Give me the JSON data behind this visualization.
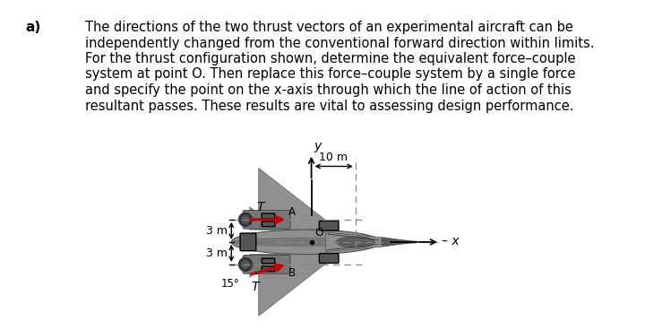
{
  "background_color": "#ffffff",
  "label_a": "a)",
  "line1": "The directions of the two thrust vectors of an experimental aircraft can be",
  "line2": "independently changed from the conventional forward direction within limits.",
  "line3": "For the thrust configuration shown, determine the equivalent force–couple",
  "line4": "system at point O. Then replace this force–couple system by a single force",
  "line5": "and specify the point on the x-axis through which the line of action of this",
  "line6": "resultant passes. These results are vital to assessing design performance.",
  "dim_10m_text": "10 m",
  "dim_3m_top_text": "3 m",
  "dim_3m_bot_text": "3 m",
  "angle_text": "15°",
  "label_T_top": "T",
  "label_T_bot": "T",
  "label_A": "A",
  "label_B": "B",
  "label_O": "O",
  "label_x": "x",
  "label_y": "y",
  "arrow_color": "#cc0000",
  "dashed_color": "#888888",
  "body_gray": "#909090",
  "dark_gray": "#555555",
  "mid_gray": "#777777",
  "light_gray": "#bbbbbb",
  "text_font_size": 10.5,
  "label_font_size": 11
}
